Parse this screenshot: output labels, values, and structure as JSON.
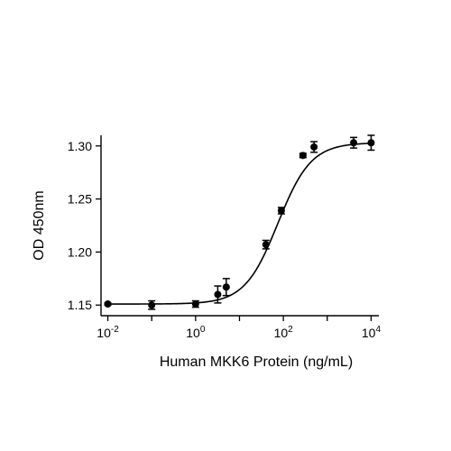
{
  "chart_data": {
    "type": "scatter",
    "xlabel": "Human MKK6 Protein (ng/mL)",
    "ylabel": "OD 450nm",
    "xscale": "log",
    "xlim": [
      0.007,
      15000
    ],
    "ylim": [
      1.14,
      1.31
    ],
    "xticks": [
      {
        "value": 0.01,
        "base": "10",
        "exp": "-2"
      },
      {
        "value": 1,
        "base": "10",
        "exp": "0"
      },
      {
        "value": 100,
        "base": "10",
        "exp": "2"
      },
      {
        "value": 10000,
        "base": "10",
        "exp": "4"
      }
    ],
    "yticks": [
      {
        "value": 1.15,
        "label": "1.15"
      },
      {
        "value": 1.2,
        "label": "1.20"
      },
      {
        "value": 1.25,
        "label": "1.25"
      },
      {
        "value": 1.3,
        "label": "1.30"
      }
    ],
    "points": [
      {
        "x": 0.01,
        "y": 1.151,
        "err": 0.001
      },
      {
        "x": 0.1,
        "y": 1.15,
        "err": 0.004
      },
      {
        "x": 1,
        "y": 1.151,
        "err": 0.003
      },
      {
        "x": 3.2,
        "y": 1.16,
        "err": 0.008
      },
      {
        "x": 5,
        "y": 1.167,
        "err": 0.008
      },
      {
        "x": 40,
        "y": 1.207,
        "err": 0.004
      },
      {
        "x": 90,
        "y": 1.239,
        "err": 0.003
      },
      {
        "x": 280,
        "y": 1.291,
        "err": 0.002
      },
      {
        "x": 500,
        "y": 1.299,
        "err": 0.005
      },
      {
        "x": 4000,
        "y": 1.303,
        "err": 0.005
      },
      {
        "x": 10000,
        "y": 1.303,
        "err": 0.007
      }
    ],
    "fit": {
      "model": "4PL",
      "bottom": 1.151,
      "top": 1.303,
      "ec50": 75,
      "hill": 1.15
    },
    "grid": false,
    "legend": "none"
  }
}
